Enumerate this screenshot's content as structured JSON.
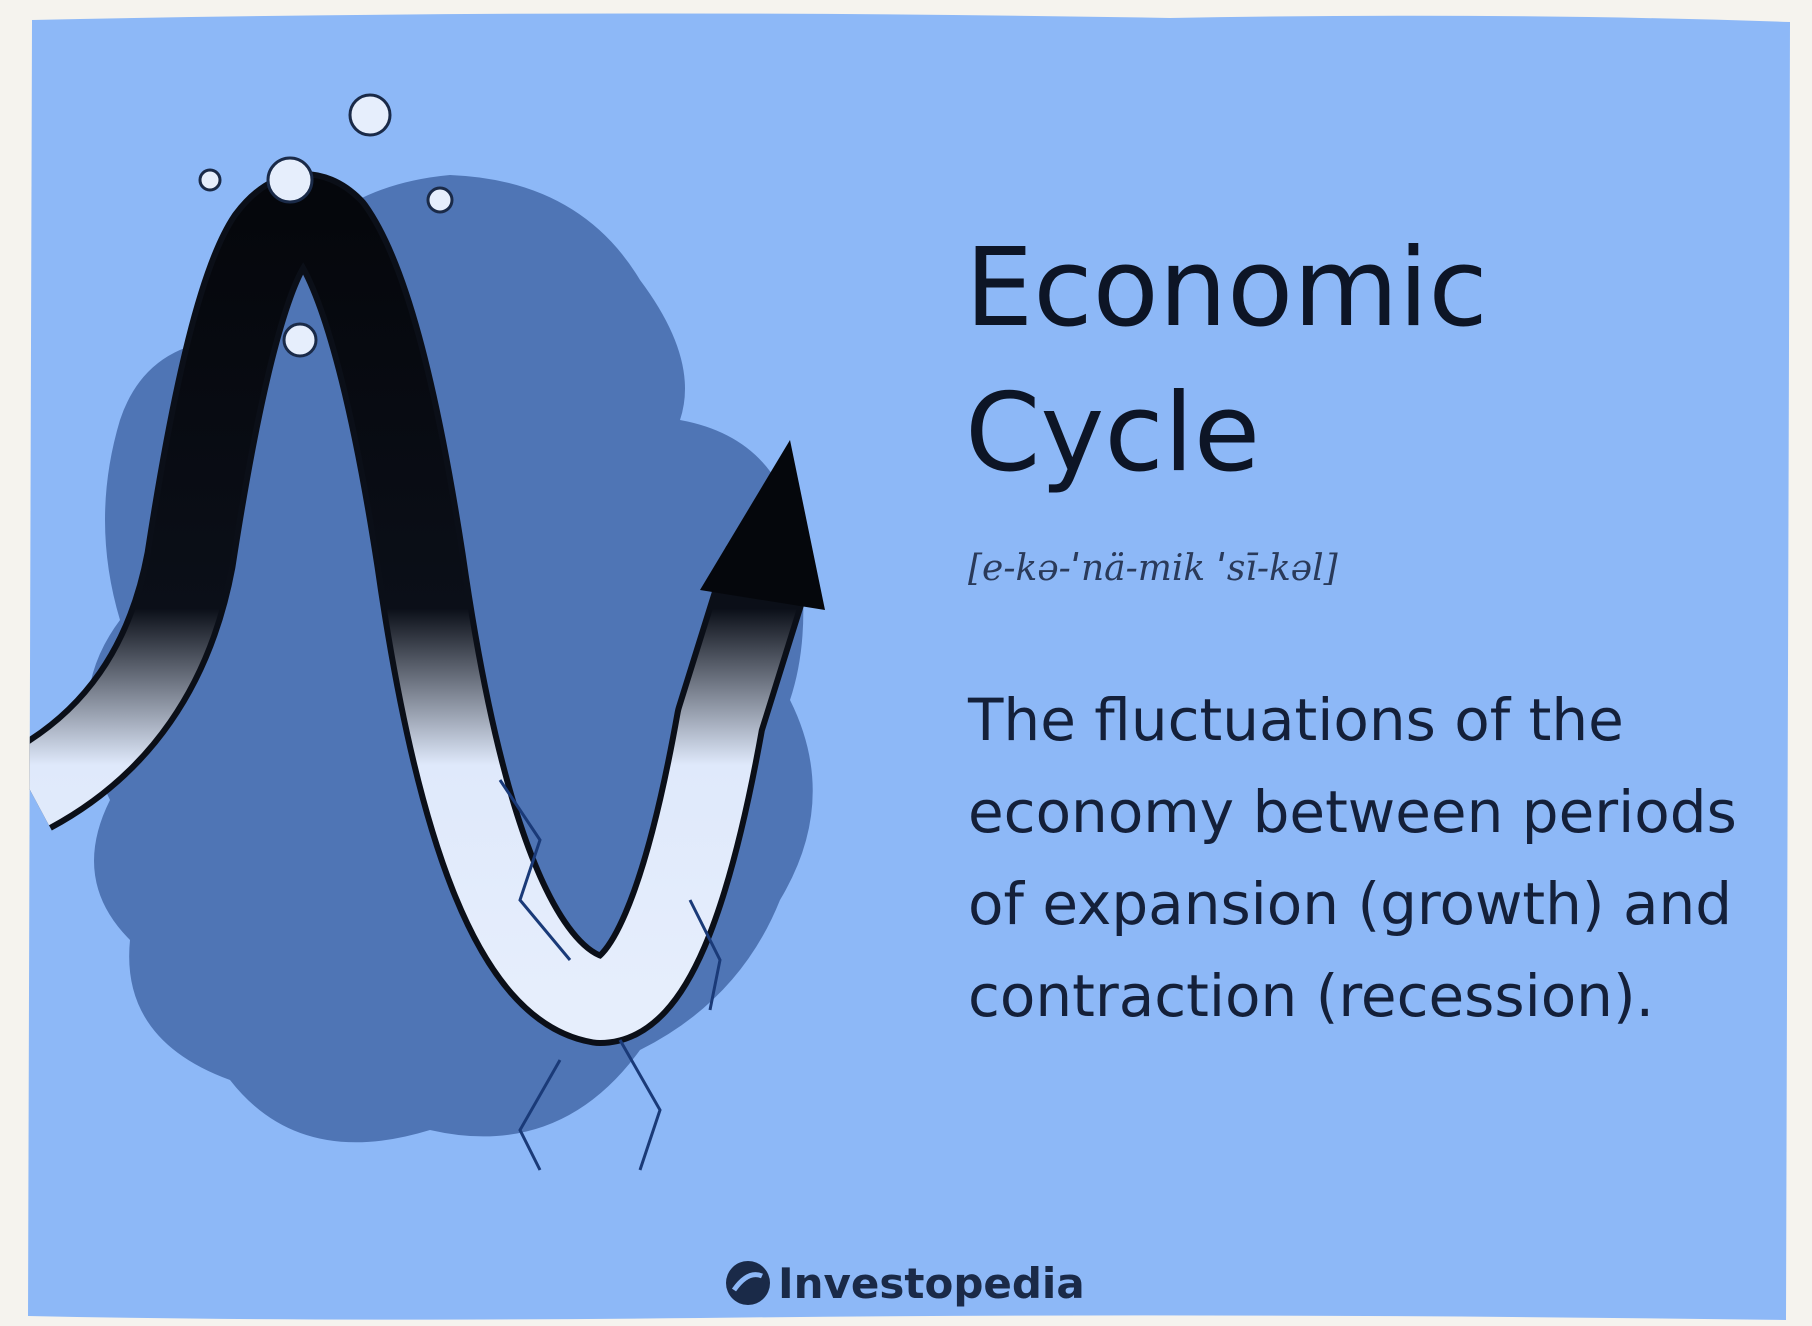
{
  "card": {
    "title_lines": [
      "Economic",
      "Cycle"
    ],
    "pronunciation": "[e-kə-ˈnä-mik ˈsī-kəl]",
    "definition_lines": [
      "The fluctuations of the",
      "economy between periods",
      "of expansion (growth) and",
      "contraction (recession)."
    ],
    "logo": "Investopedia"
  }
}
